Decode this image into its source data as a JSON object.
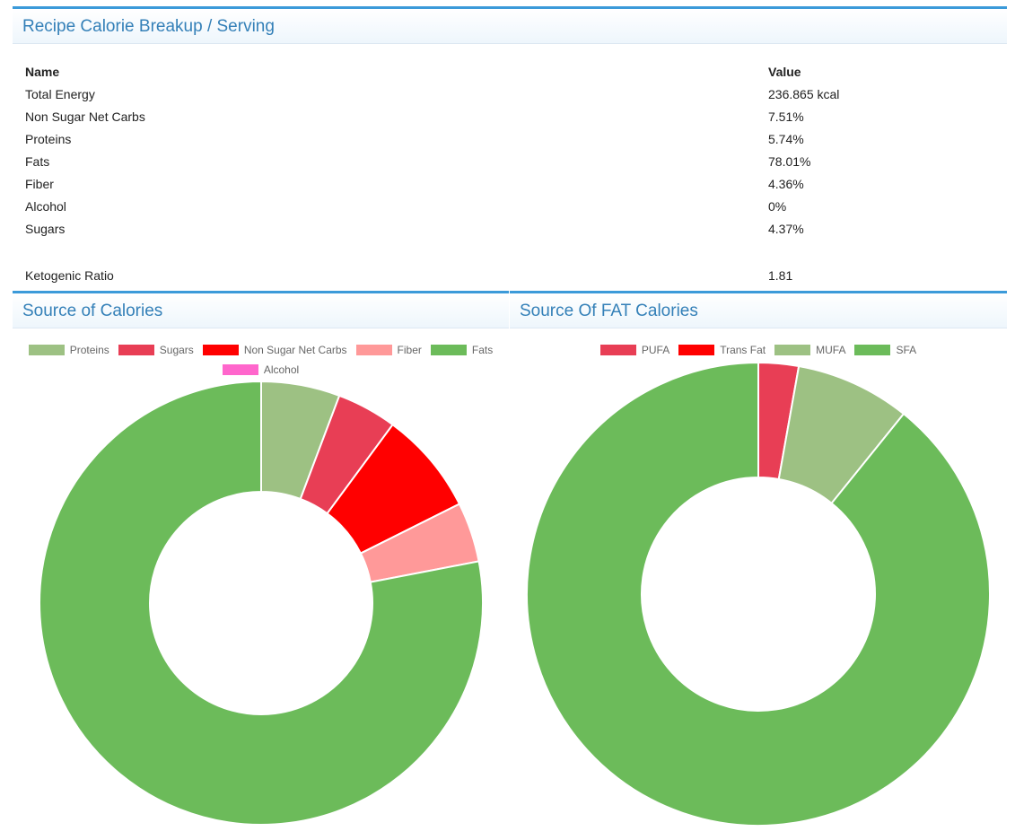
{
  "breakup": {
    "title": "Recipe Calorie Breakup / Serving",
    "col_name": "Name",
    "col_value": "Value",
    "rows": [
      {
        "name": "Total Energy",
        "value": "236.865 kcal"
      },
      {
        "name": "Non Sugar Net Carbs",
        "value": "7.51%"
      },
      {
        "name": "Proteins",
        "value": "5.74%"
      },
      {
        "name": "Fats",
        "value": "78.01%"
      },
      {
        "name": "Fiber",
        "value": "4.36%"
      },
      {
        "name": "Alcohol",
        "value": "0%"
      },
      {
        "name": "Sugars",
        "value": "4.37%"
      }
    ],
    "keto_label": "Ketogenic Ratio",
    "keto_value": "1.81"
  },
  "chart_data": [
    {
      "type": "pie",
      "title": "Source of Calories",
      "legend_position": "top",
      "categories": [
        "Proteins",
        "Sugars",
        "Non Sugar Net Carbs",
        "Fiber",
        "Fats",
        "Alcohol"
      ],
      "values": [
        5.74,
        4.37,
        7.51,
        4.36,
        78.01,
        0
      ],
      "colors": [
        "#9dc183",
        "#e83e55",
        "#ff0000",
        "#ff9999",
        "#6cbb5a",
        "#ff66cc"
      ]
    },
    {
      "type": "pie",
      "title": "Source Of FAT Calories",
      "legend_position": "top",
      "categories": [
        "PUFA",
        "Trans Fat",
        "MUFA",
        "SFA"
      ],
      "values": [
        2.8,
        0,
        8.0,
        89.2
      ],
      "colors": [
        "#e83e55",
        "#ff0000",
        "#9dc183",
        "#6cbb5a"
      ]
    }
  ]
}
